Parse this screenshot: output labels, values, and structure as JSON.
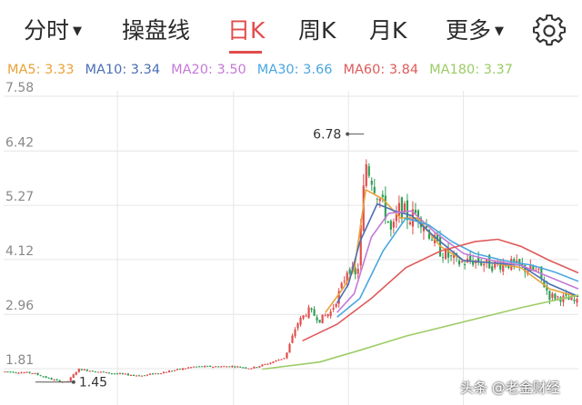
{
  "tabs": [
    {
      "label": "分时",
      "active": false,
      "has_caret": true
    },
    {
      "label": "操盘线",
      "active": false,
      "has_caret": false
    },
    {
      "label": "日K",
      "active": true,
      "has_caret": false
    },
    {
      "label": "周K",
      "active": false,
      "has_caret": false
    },
    {
      "label": "月K",
      "active": false,
      "has_caret": false
    },
    {
      "label": "更多",
      "active": false,
      "has_caret": true
    }
  ],
  "caret_glyph": "▼",
  "settings_icon": "gear-icon",
  "ma_legend": [
    {
      "label": "MA5: 3.33",
      "color": "#e8a33a"
    },
    {
      "label": "MA10: 3.34",
      "color": "#4a6fb5"
    },
    {
      "label": "MA20: 3.50",
      "color": "#c47ad6"
    },
    {
      "label": "MA30: 3.66",
      "color": "#4aa6e0"
    },
    {
      "label": "MA60: 3.84",
      "color": "#e05a5a"
    },
    {
      "label": "MA180: 3.37",
      "color": "#9ccc65"
    }
  ],
  "watermark": "头条 @老金财经",
  "chart_data": {
    "type": "candlestick",
    "y_axis_ticks": [
      "7.58",
      "6.42",
      "5.27",
      "4.12",
      "2.96",
      "1.81"
    ],
    "ylim": [
      1.45,
      7.58
    ],
    "annotations": {
      "high": "6.78",
      "low": "1.45"
    },
    "up_color": "#e24b4b",
    "down_color": "#2e9e55",
    "grid": true,
    "grid_color": "#e6e6e6",
    "price_path": [
      [
        0,
        1.75
      ],
      [
        0.05,
        1.72
      ],
      [
        0.09,
        1.56
      ],
      [
        0.11,
        1.52
      ],
      [
        0.13,
        1.8
      ],
      [
        0.18,
        1.72
      ],
      [
        0.24,
        1.66
      ],
      [
        0.28,
        1.74
      ],
      [
        0.33,
        1.85
      ],
      [
        0.4,
        1.86
      ],
      [
        0.43,
        1.82
      ],
      [
        0.46,
        1.92
      ],
      [
        0.49,
        2.05
      ],
      [
        0.51,
        2.75
      ],
      [
        0.53,
        3.05
      ],
      [
        0.55,
        2.85
      ],
      [
        0.57,
        3.02
      ],
      [
        0.59,
        3.6
      ],
      [
        0.6,
        4.0
      ],
      [
        0.615,
        3.7
      ],
      [
        0.63,
        6.2
      ],
      [
        0.65,
        5.55
      ],
      [
        0.665,
        5.1
      ],
      [
        0.675,
        4.65
      ],
      [
        0.69,
        5.25
      ],
      [
        0.705,
        5.0
      ],
      [
        0.72,
        5.12
      ],
      [
        0.735,
        4.8
      ],
      [
        0.76,
        4.3
      ],
      [
        0.79,
        4.05
      ],
      [
        0.82,
        4.1
      ],
      [
        0.85,
        4.0
      ],
      [
        0.875,
        4.05
      ],
      [
        0.9,
        3.95
      ],
      [
        0.93,
        3.85
      ],
      [
        0.95,
        3.35
      ],
      [
        0.975,
        3.3
      ],
      [
        1.0,
        3.2
      ]
    ],
    "ma_lines": [
      {
        "name": "MA5",
        "color": "#e8a33a",
        "points": [
          [
            0.56,
            3.0
          ],
          [
            0.59,
            3.5
          ],
          [
            0.61,
            3.9
          ],
          [
            0.63,
            5.6
          ],
          [
            0.66,
            5.4
          ],
          [
            0.69,
            5.0
          ],
          [
            0.72,
            5.0
          ],
          [
            0.76,
            4.4
          ],
          [
            0.8,
            4.1
          ],
          [
            0.85,
            4.05
          ],
          [
            0.9,
            3.95
          ],
          [
            0.95,
            3.5
          ],
          [
            1.0,
            3.33
          ]
        ]
      },
      {
        "name": "MA10",
        "color": "#4a6fb5",
        "points": [
          [
            0.58,
            3.2
          ],
          [
            0.6,
            3.6
          ],
          [
            0.62,
            4.5
          ],
          [
            0.65,
            5.3
          ],
          [
            0.68,
            5.15
          ],
          [
            0.71,
            5.05
          ],
          [
            0.75,
            4.6
          ],
          [
            0.8,
            4.1
          ],
          [
            0.85,
            4.05
          ],
          [
            0.9,
            4.0
          ],
          [
            0.95,
            3.6
          ],
          [
            1.0,
            3.34
          ]
        ]
      },
      {
        "name": "MA20",
        "color": "#c47ad6",
        "points": [
          [
            0.58,
            3.0
          ],
          [
            0.61,
            3.4
          ],
          [
            0.64,
            4.6
          ],
          [
            0.67,
            5.1
          ],
          [
            0.71,
            5.15
          ],
          [
            0.75,
            4.7
          ],
          [
            0.8,
            4.25
          ],
          [
            0.85,
            4.1
          ],
          [
            0.9,
            4.0
          ],
          [
            0.95,
            3.75
          ],
          [
            1.0,
            3.5
          ]
        ]
      },
      {
        "name": "MA30",
        "color": "#4aa6e0",
        "points": [
          [
            0.58,
            2.9
          ],
          [
            0.62,
            3.3
          ],
          [
            0.66,
            4.3
          ],
          [
            0.7,
            5.0
          ],
          [
            0.74,
            4.85
          ],
          [
            0.78,
            4.5
          ],
          [
            0.82,
            4.25
          ],
          [
            0.87,
            4.1
          ],
          [
            0.92,
            4.0
          ],
          [
            0.96,
            3.85
          ],
          [
            1.0,
            3.66
          ]
        ]
      },
      {
        "name": "MA60",
        "color": "#e05a5a",
        "points": [
          [
            0.52,
            2.4
          ],
          [
            0.58,
            2.75
          ],
          [
            0.64,
            3.3
          ],
          [
            0.7,
            3.95
          ],
          [
            0.76,
            4.3
          ],
          [
            0.82,
            4.5
          ],
          [
            0.86,
            4.55
          ],
          [
            0.9,
            4.4
          ],
          [
            0.95,
            4.1
          ],
          [
            1.0,
            3.84
          ]
        ]
      },
      {
        "name": "MA180",
        "color": "#9ccc65",
        "points": [
          [
            0.45,
            1.8
          ],
          [
            0.55,
            1.95
          ],
          [
            0.62,
            2.2
          ],
          [
            0.7,
            2.5
          ],
          [
            0.8,
            2.8
          ],
          [
            0.9,
            3.1
          ],
          [
            1.0,
            3.37
          ]
        ]
      }
    ]
  }
}
